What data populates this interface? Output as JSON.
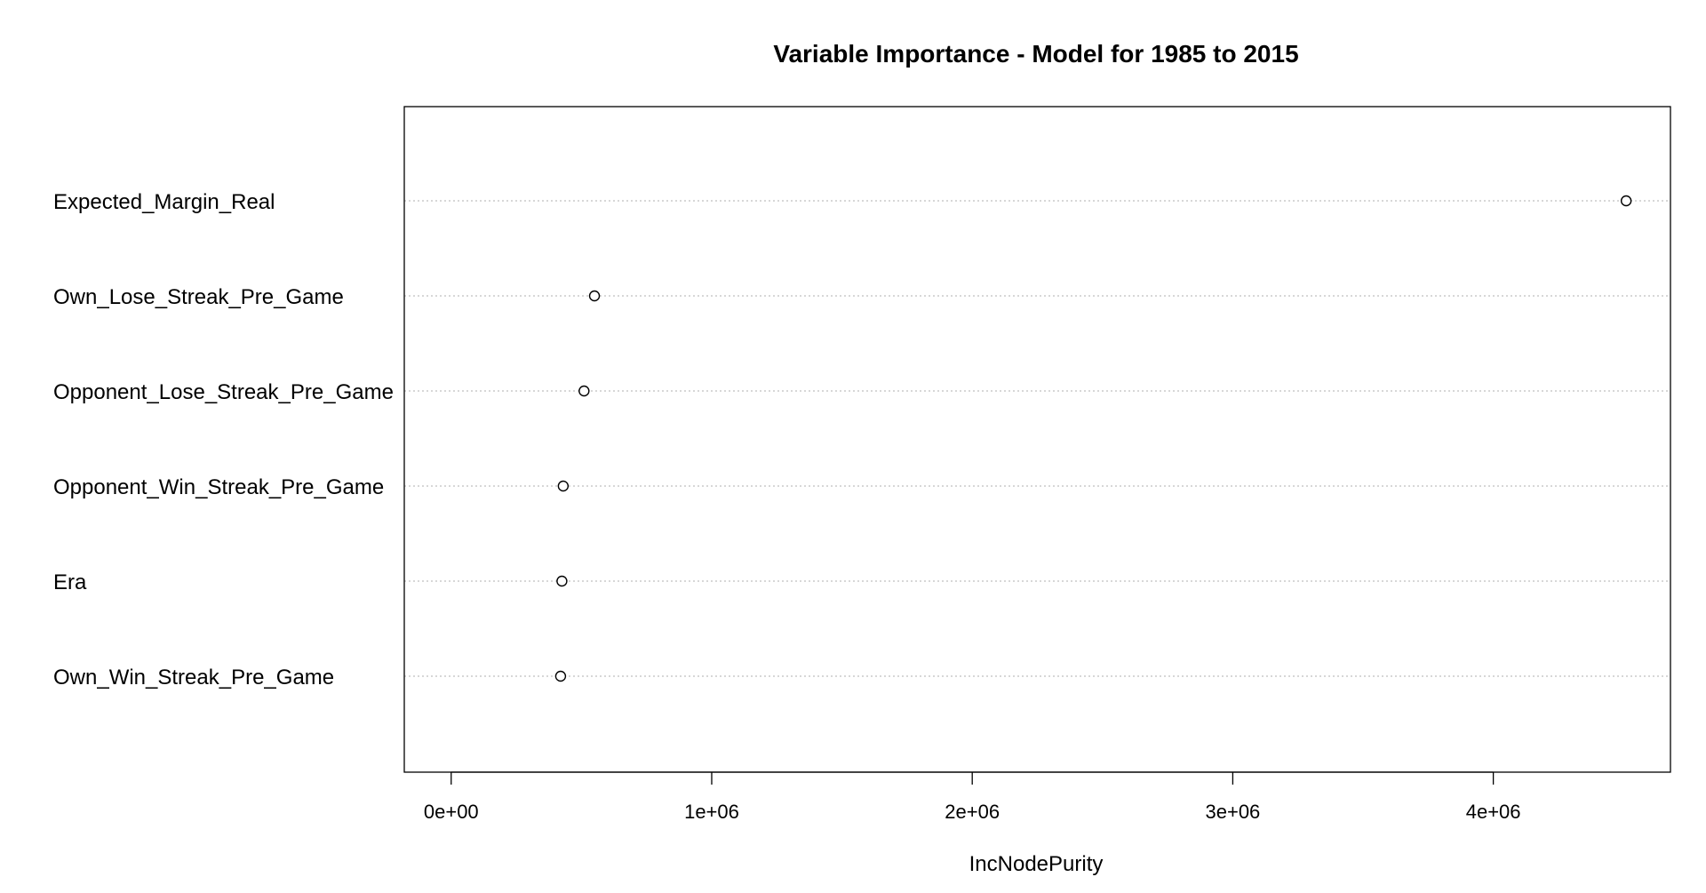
{
  "chart_data": {
    "type": "scatter",
    "title": "Variable Importance - Model for 1985 to 2015",
    "xlabel": "IncNodePurity",
    "ylabel": "",
    "categories": [
      "Expected_Margin_Real",
      "Own_Lose_Streak_Pre_Game",
      "Opponent_Lose_Streak_Pre_Game",
      "Opponent_Win_Streak_Pre_Game",
      "Era",
      "Own_Win_Streak_Pre_Game"
    ],
    "values": [
      4510000,
      550000,
      510000,
      430000,
      425000,
      420000
    ],
    "xlim": [
      -180000,
      4680000
    ],
    "x_ticks": [
      0,
      1000000,
      2000000,
      3000000,
      4000000
    ],
    "x_tick_labels": [
      "0e+00",
      "1e+06",
      "2e+06",
      "3e+06",
      "4e+06"
    ],
    "grid": "dotted horizontal guides per variable",
    "legend": "none"
  }
}
